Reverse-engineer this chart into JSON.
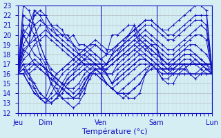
{
  "title": "",
  "xlabel": "Température (°c)",
  "ylabel": "",
  "ylim": [
    12,
    23
  ],
  "yticks": [
    12,
    13,
    14,
    15,
    16,
    17,
    18,
    19,
    20,
    21,
    22,
    23
  ],
  "background_color": "#d4eef4",
  "grid_color": "#aaaaaa",
  "line_color": "#1010c0",
  "day_labels": [
    "Jeu",
    "Dim",
    "Ven",
    "Sam",
    "Lun"
  ],
  "day_positions": [
    0,
    42,
    126,
    210,
    294
  ],
  "total_points": 294,
  "series": [
    [
      16,
      20,
      19,
      22.5,
      22,
      22,
      21,
      21,
      20.5,
      19.5,
      20,
      19,
      19,
      18.5,
      18,
      17.5,
      18,
      20,
      20,
      20.5,
      21,
      21,
      20,
      19.5,
      19,
      19,
      17,
      16.5,
      16,
      16,
      16.5,
      16,
      16,
      16.5,
      17,
      17
    ],
    [
      16,
      20,
      21,
      22.5,
      22,
      21,
      21,
      20.5,
      20,
      19.5,
      19,
      18.5,
      18.5,
      18,
      17.5,
      17,
      17,
      17.5,
      18,
      19,
      20,
      20.5,
      19,
      18.5,
      19,
      18.5,
      17.5,
      17,
      16.5,
      17,
      17,
      17,
      17.5,
      17,
      17,
      17
    ],
    [
      16,
      20.5,
      20,
      22,
      22.5,
      22,
      21,
      20,
      20,
      20,
      19,
      18,
      17.5,
      17,
      17,
      16.5,
      17,
      18,
      19,
      19.5,
      20,
      21,
      19.5,
      19,
      18,
      18,
      17.5,
      17,
      17,
      17,
      17,
      17,
      17,
      17,
      17,
      17
    ],
    [
      16,
      19,
      20,
      21,
      21.5,
      21,
      20.5,
      20,
      19.5,
      19,
      18.5,
      18,
      18,
      17.5,
      17,
      17,
      17,
      18,
      18.5,
      19,
      19.5,
      20,
      19.5,
      19,
      18.5,
      18,
      17.5,
      17,
      17,
      17,
      17,
      17,
      17,
      17,
      17,
      17
    ],
    [
      16,
      18.5,
      19,
      20,
      21,
      21,
      20,
      19.5,
      19,
      18.5,
      18,
      17.5,
      17,
      17,
      17,
      16.5,
      17,
      17.5,
      18,
      18.5,
      19,
      19.5,
      19,
      18.5,
      18,
      17.5,
      17,
      16.5,
      16.5,
      17,
      17,
      17,
      17,
      17,
      17,
      17
    ],
    [
      16,
      18,
      19,
      19.5,
      20,
      20.5,
      20,
      19.5,
      19,
      18.5,
      18,
      17.5,
      17,
      17,
      16.5,
      16.5,
      16.5,
      17,
      17.5,
      18,
      18.5,
      19,
      18.5,
      18,
      17.5,
      17,
      16.5,
      16.5,
      16.5,
      17,
      17,
      17,
      17,
      17,
      17,
      17
    ],
    [
      16,
      17.5,
      18,
      19,
      19.5,
      20,
      19.5,
      19,
      18.5,
      18,
      17.5,
      17,
      17,
      16.5,
      16.5,
      16,
      16.5,
      17,
      17.5,
      18,
      18,
      18.5,
      18,
      17.5,
      17,
      16.5,
      16.5,
      16.5,
      16.5,
      16.5,
      16.5,
      17,
      17,
      17,
      16.5,
      16.5
    ],
    [
      16,
      21,
      21,
      20,
      18,
      17,
      15,
      14,
      13.5,
      13.5,
      13.5,
      14,
      15,
      16,
      16,
      15.5,
      15,
      14.5,
      14,
      14,
      13.5,
      13.5,
      14,
      16,
      16.5,
      16.5,
      15.5,
      15,
      15,
      16,
      16,
      16,
      16,
      16,
      16,
      16
    ],
    [
      16,
      20,
      19,
      18,
      17.5,
      16.5,
      15,
      14.5,
      13.5,
      13,
      12.5,
      13,
      14,
      16,
      16.5,
      16,
      15,
      14.5,
      14,
      14,
      14,
      14.5,
      15,
      16,
      17,
      16.5,
      15.5,
      15.5,
      16,
      16,
      16,
      16,
      16,
      16,
      16,
      16
    ],
    [
      16,
      18.5,
      18,
      17,
      16.5,
      16,
      15.5,
      15,
      14.5,
      14,
      13.5,
      13.5,
      14.5,
      15.5,
      16.5,
      16,
      15,
      14.5,
      14,
      14.5,
      15,
      15.5,
      16,
      16.5,
      17,
      17,
      16.5,
      16,
      16,
      16.5,
      16.5,
      17,
      17,
      16.5,
      16,
      16
    ],
    [
      16,
      17,
      17,
      17,
      16.5,
      16,
      15.5,
      15,
      14.5,
      14,
      13.5,
      14,
      15,
      16,
      16.5,
      16,
      15,
      14.5,
      15,
      15.5,
      16,
      16.5,
      17,
      17,
      17,
      16.5,
      16,
      16,
      16,
      16.5,
      17,
      17,
      17,
      17,
      16.5,
      16
    ],
    [
      16,
      16.5,
      17,
      17.5,
      17,
      16.5,
      16,
      15.5,
      15,
      14.5,
      14,
      14.5,
      15.5,
      16,
      16.5,
      16.5,
      16,
      15,
      15.5,
      16,
      16.5,
      17,
      17.5,
      17.5,
      17,
      16.5,
      16,
      16,
      16.5,
      17,
      17.5,
      17.5,
      17,
      17,
      16.5,
      16
    ],
    [
      16,
      16,
      16.5,
      17,
      17,
      16.5,
      16,
      15.5,
      15,
      14.5,
      14.5,
      15,
      16,
      16.5,
      17,
      17,
      16,
      15,
      15.5,
      16,
      16.5,
      17,
      17.5,
      17.5,
      17,
      16.5,
      16.5,
      16.5,
      17,
      17.5,
      18,
      18,
      17.5,
      17,
      16.5,
      16
    ],
    [
      16,
      16,
      16,
      16.5,
      17,
      16.5,
      16,
      15.5,
      15,
      15,
      15.5,
      16,
      16.5,
      17,
      17,
      17,
      16,
      15,
      16,
      16.5,
      17,
      17.5,
      18,
      18,
      17.5,
      17,
      17,
      17,
      17.5,
      18,
      18.5,
      18.5,
      18,
      17.5,
      17,
      16
    ],
    [
      16,
      22,
      21.5,
      21,
      19,
      17.5,
      16,
      15,
      14.5,
      14,
      13.5,
      13.5,
      15,
      16,
      16,
      15.5,
      15,
      14.5,
      14,
      13.5,
      14,
      14.5,
      15,
      16,
      16.5,
      17,
      16.5,
      16,
      16,
      16.5,
      17,
      16,
      15.5,
      16,
      16.5,
      16
    ],
    [
      16,
      17,
      16,
      15,
      14,
      13.5,
      13,
      13.5,
      14,
      15,
      15.5,
      16,
      16.5,
      16,
      16,
      16,
      16,
      16,
      16.5,
      17,
      17.5,
      18,
      18.5,
      19,
      18.5,
      18,
      17.5,
      17,
      17,
      17.5,
      18,
      18,
      18,
      17.5,
      17,
      16.5
    ],
    [
      16,
      16.5,
      15.5,
      15,
      14,
      13.5,
      13,
      13.5,
      14.5,
      15.5,
      16,
      16.5,
      17,
      17,
      17,
      16.5,
      16,
      16,
      17,
      17.5,
      18,
      18.5,
      19,
      19.5,
      19,
      18.5,
      18,
      17.5,
      17.5,
      18,
      18.5,
      19,
      19,
      18.5,
      18,
      17
    ],
    [
      16,
      16,
      15,
      14,
      13.5,
      13,
      13,
      13.5,
      14.5,
      15.5,
      16,
      17,
      17.5,
      17.5,
      17,
      16.5,
      16.5,
      17,
      17.5,
      18,
      18.5,
      19,
      19.5,
      20,
      19.5,
      19,
      18.5,
      18,
      18,
      18.5,
      19,
      19.5,
      20,
      20,
      19.5,
      16
    ],
    [
      16,
      16,
      15,
      14,
      13.5,
      13,
      13.5,
      14,
      15,
      16,
      16.5,
      17,
      17.5,
      18,
      18,
      17.5,
      17,
      17.5,
      18,
      18.5,
      19,
      19.5,
      20,
      20.5,
      20,
      19.5,
      19,
      18.5,
      18.5,
      19,
      19.5,
      20,
      20.5,
      21,
      20.5,
      16
    ],
    [
      16,
      16,
      15,
      14.5,
      13.5,
      13,
      14,
      15,
      16,
      16.5,
      17,
      17.5,
      18,
      18.5,
      19,
      18.5,
      18,
      18,
      18.5,
      19,
      19.5,
      20,
      20.5,
      21,
      21,
      20.5,
      20,
      19.5,
      19.5,
      20,
      20.5,
      21,
      21.5,
      21.5,
      21,
      16.5
    ],
    [
      16,
      16.5,
      16,
      14.5,
      13.5,
      13.5,
      15,
      16,
      16.5,
      17,
      17.5,
      18,
      18.5,
      19,
      19.5,
      19,
      18.5,
      18.5,
      19,
      19.5,
      20,
      20.5,
      21,
      21.5,
      21.5,
      21,
      20.5,
      20,
      20,
      20.5,
      21,
      21.5,
      22,
      22,
      22,
      16.5
    ],
    [
      16,
      23,
      22.5,
      21,
      19,
      17.5,
      16.5,
      16,
      16.5,
      17,
      17.5,
      18,
      18.5,
      19,
      19,
      18.5,
      18,
      18.5,
      19,
      19.5,
      20,
      20.5,
      21,
      21.5,
      21.5,
      21,
      20.5,
      20.5,
      21,
      21.5,
      22,
      22.5,
      23,
      23,
      22.5,
      16.5
    ]
  ]
}
